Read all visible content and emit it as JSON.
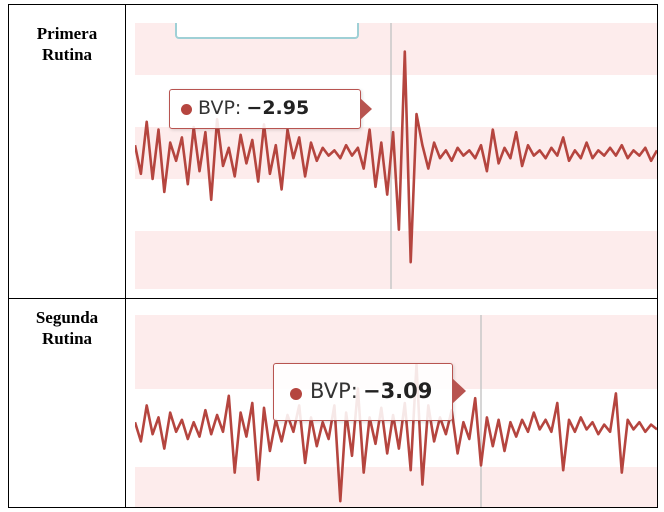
{
  "rows": [
    {
      "label_line1": "Primera",
      "label_line2": "Rutina",
      "tooltip": {
        "series": "BVP:",
        "value": "−2.95"
      }
    },
    {
      "label_line1": "Segunda",
      "label_line2": "Rutina",
      "tooltip": {
        "series": "BVP:",
        "value": "−3.09"
      }
    }
  ],
  "colors": {
    "line": "#b5453f",
    "band": "#fdecec",
    "tooltip_border": "#b85450",
    "crosshair": "#c8c8c8"
  },
  "chart_data": [
    {
      "type": "line",
      "title": "",
      "xlabel": "",
      "ylabel": "",
      "series": [
        {
          "name": "BVP",
          "values": [
            0.3,
            -0.8,
            1.2,
            -1.0,
            0.9,
            -1.5,
            0.4,
            -0.3,
            0.6,
            -1.2,
            1.0,
            -0.7,
            0.8,
            -1.8,
            1.3,
            -0.5,
            0.2,
            -0.9,
            0.7,
            -0.4,
            0.5,
            -1.1,
            1.1,
            -0.8,
            0.3,
            -1.4,
            0.9,
            -0.2,
            0.6,
            -0.9,
            0.4,
            -0.3,
            0.2,
            -0.1,
            0.1,
            -0.2,
            0.3,
            -0.1,
            0.2,
            -0.6,
            0.9,
            -1.3,
            0.4,
            -1.6,
            0.8,
            -2.95,
            3.9,
            -4.2,
            1.5,
            0.3,
            -0.6,
            0.4,
            -0.2,
            0.1,
            -0.3,
            0.2,
            -0.1,
            0.1,
            -0.2,
            0.3,
            -0.7,
            0.9,
            -0.4,
            0.2,
            -0.2,
            0.8,
            -0.5,
            0.3,
            -0.1,
            0.1,
            -0.2,
            0.2,
            -0.1,
            0.6,
            -0.3,
            0.1,
            -0.2,
            0.4,
            -0.2,
            0.1,
            -0.1,
            0.2,
            -0.1,
            0.3,
            -0.2,
            0.1,
            -0.1,
            0.2,
            -0.3,
            0.1
          ]
        }
      ]
    },
    {
      "type": "line",
      "title": "",
      "xlabel": "",
      "ylabel": "",
      "series": [
        {
          "name": "BVP",
          "values": [
            0.2,
            -0.6,
            0.9,
            -0.3,
            0.4,
            -0.9,
            0.6,
            -0.2,
            0.3,
            -0.5,
            0.2,
            -0.4,
            0.7,
            -0.3,
            0.5,
            -0.2,
            1.3,
            -1.9,
            0.6,
            -0.4,
            1.0,
            -2.2,
            0.8,
            -1.0,
            0.3,
            -0.6,
            0.5,
            -0.2,
            0.9,
            -1.5,
            0.4,
            -0.8,
            0.2,
            -0.5,
            0.9,
            -3.09,
            0.6,
            -1.2,
            1.6,
            -1.9,
            0.4,
            -0.7,
            0.8,
            -1.1,
            0.5,
            -0.9,
            1.0,
            -1.8,
            2.6,
            -2.4,
            0.9,
            -0.6,
            0.4,
            -0.3,
            0.7,
            -1.1,
            0.2,
            -0.5,
            1.2,
            -1.6,
            0.4,
            -0.8,
            0.3,
            -1.0,
            0.2,
            -0.4,
            0.3,
            -0.2,
            0.6,
            -0.1,
            0.3,
            -0.2,
            1.0,
            -1.8,
            0.3,
            -0.2,
            0.4,
            -0.1,
            0.2,
            -0.3,
            0.1,
            -0.2,
            1.4,
            -1.9,
            0.3,
            -0.1,
            0.2,
            -0.2,
            0.1,
            -0.1
          ]
        }
      ]
    }
  ]
}
